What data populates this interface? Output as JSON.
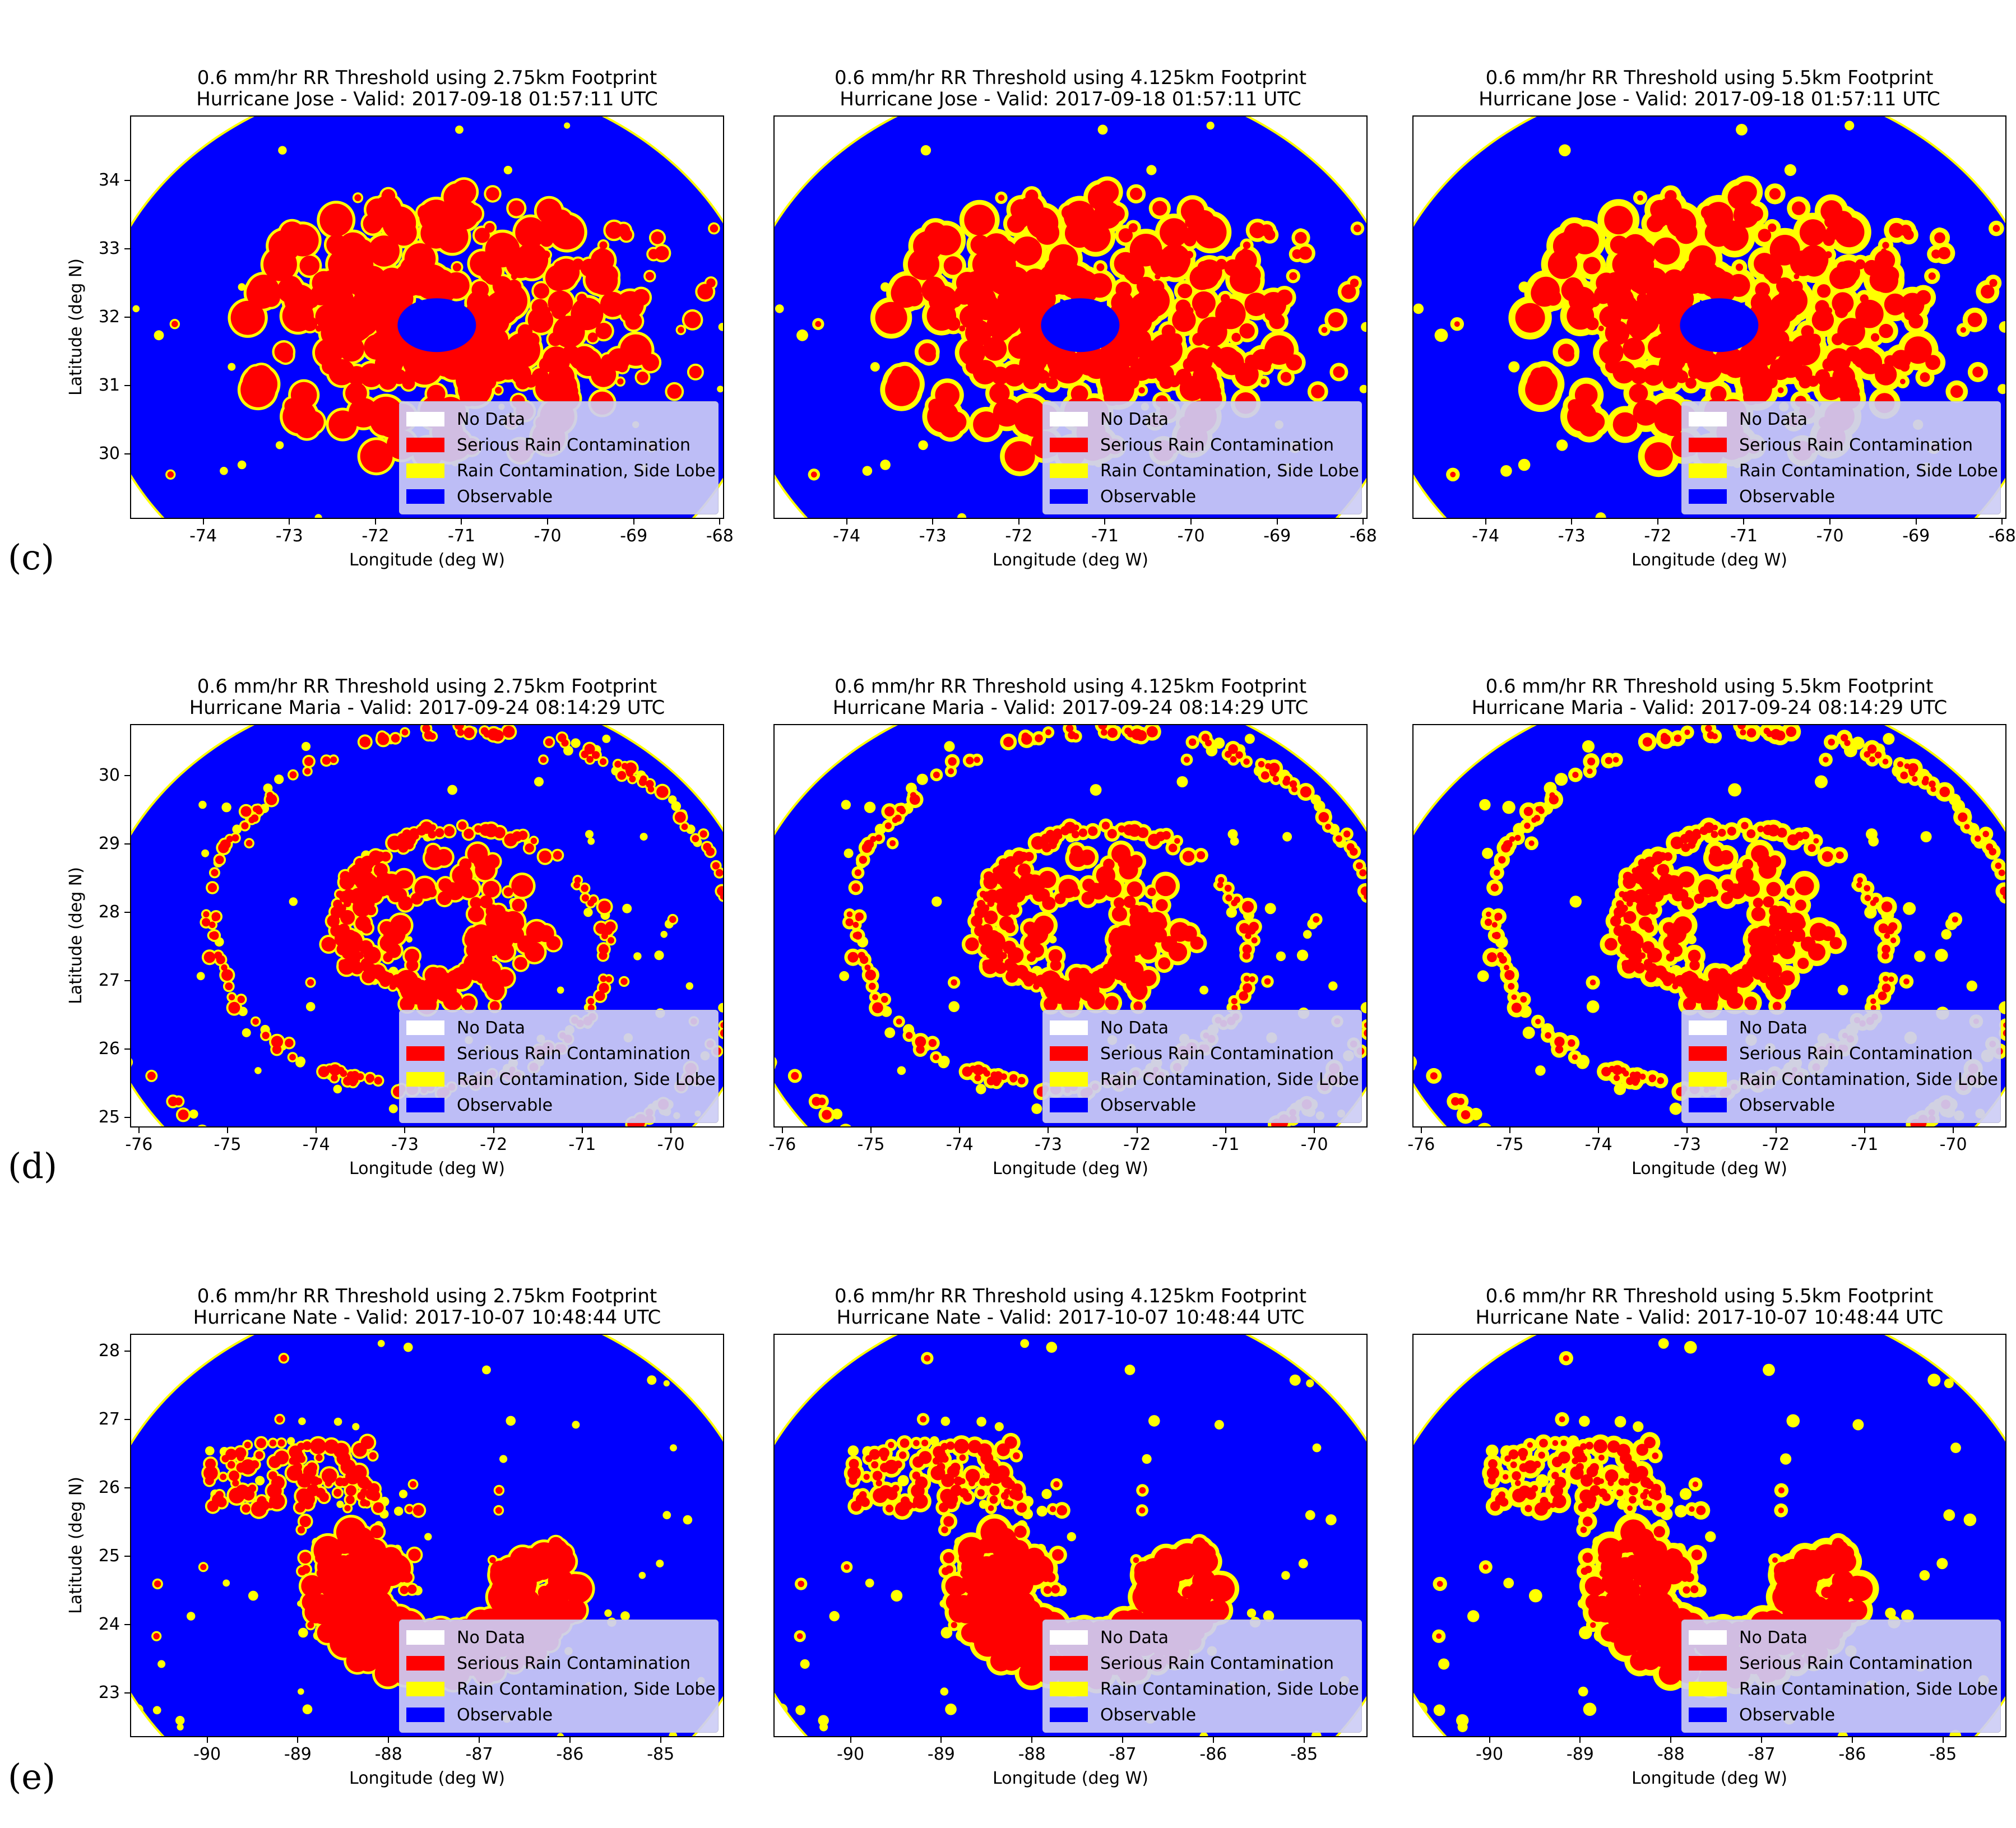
{
  "figure": {
    "row_labels": [
      "(c)",
      "(d)",
      "(e)"
    ],
    "colors": {
      "no_data": "#ffffff",
      "serious": "#ff0000",
      "rain": "#ffff00",
      "observable": "#0000ff"
    }
  },
  "chart_data": [
    {
      "type": "heatmap",
      "storm": "Jose",
      "footprint_km": 2.75,
      "title": "0.6 mm/hr RR Threshold using 2.75km Footprint",
      "subtitle": "Hurricane Jose - Valid: 2017-09-18 01:57:11 UTC",
      "xlabel": "Longitude (deg W)",
      "ylabel": "Latitude (deg N)",
      "xlim": [
        -74.85,
        -67.95
      ],
      "ylim": [
        29.05,
        34.95
      ],
      "xticks": [
        -74,
        -73,
        -72,
        -71,
        -70,
        -69,
        -68
      ],
      "yticks": [
        30,
        31,
        32,
        33,
        34
      ],
      "center": [
        -71.3,
        31.9
      ],
      "pattern": "eye",
      "legend": [
        "No Data",
        "Serious Rain Contamination",
        "Rain Contamination, Side Lobe",
        "Observable"
      ],
      "legend_position": "lower right",
      "grid": false
    },
    {
      "type": "heatmap",
      "storm": "Jose",
      "footprint_km": 4.125,
      "title": "0.6 mm/hr RR Threshold using 4.125km Footprint",
      "subtitle": "Hurricane Jose - Valid: 2017-09-18 01:57:11 UTC",
      "xlabel": "Longitude (deg W)",
      "ylabel": "",
      "xlim": [
        -74.85,
        -67.95
      ],
      "ylim": [
        29.05,
        34.95
      ],
      "xticks": [
        -74,
        -73,
        -72,
        -71,
        -70,
        -69,
        -68
      ],
      "yticks": [],
      "center": [
        -71.3,
        31.9
      ],
      "pattern": "eye",
      "legend": [
        "No Data",
        "Serious Rain Contamination",
        "Rain Contamination, Side Lobe",
        "Observable"
      ],
      "legend_position": "lower right",
      "grid": false
    },
    {
      "type": "heatmap",
      "storm": "Jose",
      "footprint_km": 5.5,
      "title": "0.6 mm/hr RR Threshold using 5.5km Footprint",
      "subtitle": "Hurricane Jose - Valid: 2017-09-18 01:57:11 UTC",
      "xlabel": "Longitude (deg W)",
      "ylabel": "",
      "xlim": [
        -74.85,
        -67.95
      ],
      "ylim": [
        29.05,
        34.95
      ],
      "xticks": [
        -74,
        -73,
        -72,
        -71,
        -70,
        -69,
        -68
      ],
      "yticks": [],
      "center": [
        -71.3,
        31.9
      ],
      "pattern": "eye",
      "legend": [
        "No Data",
        "Serious Rain Contamination",
        "Rain Contamination, Side Lobe",
        "Observable"
      ],
      "legend_position": "lower right",
      "grid": false
    },
    {
      "type": "heatmap",
      "storm": "Maria",
      "footprint_km": 2.75,
      "title": "0.6 mm/hr RR Threshold using 2.75km Footprint",
      "subtitle": "Hurricane Maria - Valid: 2017-09-24 08:14:29 UTC",
      "xlabel": "Longitude (deg W)",
      "ylabel": "Latitude (deg N)",
      "xlim": [
        -76.1,
        -69.4
      ],
      "ylim": [
        24.85,
        30.75
      ],
      "xticks": [
        -76,
        -75,
        -74,
        -73,
        -72,
        -71,
        -70
      ],
      "yticks": [
        25,
        26,
        27,
        28,
        29,
        30
      ],
      "center": [
        -72.6,
        27.7
      ],
      "pattern": "spiral",
      "legend": [
        "No Data",
        "Serious Rain Contamination",
        "Rain Contamination, Side Lobe",
        "Observable"
      ],
      "legend_position": "lower right",
      "grid": false
    },
    {
      "type": "heatmap",
      "storm": "Maria",
      "footprint_km": 4.125,
      "title": "0.6 mm/hr RR Threshold using 4.125km Footprint",
      "subtitle": "Hurricane Maria - Valid: 2017-09-24 08:14:29 UTC",
      "xlabel": "Longitude (deg W)",
      "ylabel": "",
      "xlim": [
        -76.1,
        -69.4
      ],
      "ylim": [
        24.85,
        30.75
      ],
      "xticks": [
        -76,
        -75,
        -74,
        -73,
        -72,
        -71,
        -70
      ],
      "yticks": [],
      "center": [
        -72.6,
        27.7
      ],
      "pattern": "spiral",
      "legend": [
        "No Data",
        "Serious Rain Contamination",
        "Rain Contamination, Side Lobe",
        "Observable"
      ],
      "legend_position": "lower right",
      "grid": false
    },
    {
      "type": "heatmap",
      "storm": "Maria",
      "footprint_km": 5.5,
      "title": "0.6 mm/hr RR Threshold using 5.5km Footprint",
      "subtitle": "Hurricane Maria - Valid: 2017-09-24 08:14:29 UTC",
      "xlabel": "Longitude (deg W)",
      "ylabel": "",
      "xlim": [
        -76.1,
        -69.4
      ],
      "ylim": [
        24.85,
        30.75
      ],
      "xticks": [
        -76,
        -75,
        -74,
        -73,
        -72,
        -71,
        -70
      ],
      "yticks": [],
      "center": [
        -72.6,
        27.7
      ],
      "pattern": "spiral",
      "legend": [
        "No Data",
        "Serious Rain Contamination",
        "Rain Contamination, Side Lobe",
        "Observable"
      ],
      "legend_position": "lower right",
      "grid": false
    },
    {
      "type": "heatmap",
      "storm": "Nate",
      "footprint_km": 2.75,
      "title": "0.6 mm/hr RR Threshold using 2.75km Footprint",
      "subtitle": "Hurricane Nate - Valid: 2017-10-07 10:48:44 UTC",
      "xlabel": "Longitude (deg W)",
      "ylabel": "Latitude (deg N)",
      "xlim": [
        -90.85,
        -84.3
      ],
      "ylim": [
        22.35,
        28.25
      ],
      "xticks": [
        -90,
        -89,
        -88,
        -87,
        -86,
        -85
      ],
      "yticks": [
        23,
        24,
        25,
        26,
        27,
        28
      ],
      "center": [
        -87.4,
        24.8
      ],
      "pattern": "comma",
      "legend": [
        "No Data",
        "Serious Rain Contamination",
        "Rain Contamination, Side Lobe",
        "Observable"
      ],
      "legend_position": "lower right",
      "grid": false
    },
    {
      "type": "heatmap",
      "storm": "Nate",
      "footprint_km": 4.125,
      "title": "0.6 mm/hr RR Threshold using 4.125km Footprint",
      "subtitle": "Hurricane Nate - Valid: 2017-10-07 10:48:44 UTC",
      "xlabel": "Longitude (deg W)",
      "ylabel": "",
      "xlim": [
        -90.85,
        -84.3
      ],
      "ylim": [
        22.35,
        28.25
      ],
      "xticks": [
        -90,
        -89,
        -88,
        -87,
        -86,
        -85
      ],
      "yticks": [],
      "center": [
        -87.4,
        24.8
      ],
      "pattern": "comma",
      "legend": [
        "No Data",
        "Serious Rain Contamination",
        "Rain Contamination, Side Lobe",
        "Observable"
      ],
      "legend_position": "lower right",
      "grid": false
    },
    {
      "type": "heatmap",
      "storm": "Nate",
      "footprint_km": 5.5,
      "title": "0.6 mm/hr RR Threshold using 5.5km Footprint",
      "subtitle": "Hurricane Nate - Valid: 2017-10-07 10:48:44 UTC",
      "xlabel": "Longitude (deg W)",
      "ylabel": "",
      "xlim": [
        -90.85,
        -84.3
      ],
      "ylim": [
        22.35,
        28.25
      ],
      "xticks": [
        -90,
        -89,
        -88,
        -87,
        -86,
        -85
      ],
      "yticks": [],
      "center": [
        -87.4,
        24.8
      ],
      "pattern": "comma",
      "legend": [
        "No Data",
        "Serious Rain Contamination",
        "Rain Contamination, Side Lobe",
        "Observable"
      ],
      "legend_position": "lower right",
      "grid": false
    }
  ]
}
